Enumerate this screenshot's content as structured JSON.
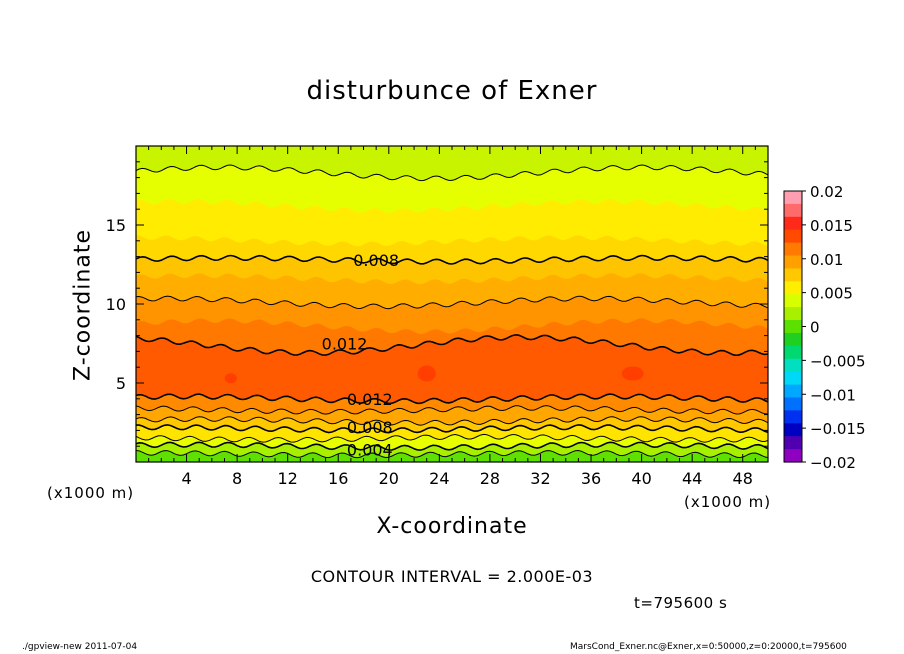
{
  "chart_data": {
    "type": "heatmap",
    "title": "disturbunce of Exner",
    "xlabel": "X-coordinate",
    "ylabel": "Z-coordinate",
    "x_unit_label": "(x1000 m)",
    "z_unit_label": "(x1000 m)",
    "xlim": [
      0,
      50
    ],
    "ylim": [
      0,
      20
    ],
    "x_ticks": [
      4,
      8,
      12,
      16,
      20,
      24,
      28,
      32,
      36,
      40,
      44,
      48
    ],
    "y_ticks": [
      5,
      10,
      15
    ],
    "contour_interval_text": "CONTOUR INTERVAL = 2.000E-03",
    "colorbar": {
      "ticks": [
        0.02,
        0.015,
        0.01,
        0.005,
        0,
        -0.005,
        -0.01,
        -0.015,
        -0.02
      ],
      "tick_labels": [
        "0.02",
        "0.015",
        "0.01",
        "0.005",
        "0",
        "−0.005",
        "−0.01",
        "−0.015",
        "−0.02"
      ],
      "colors": [
        "#ff9eb0",
        "#ff6a6a",
        "#ff2a1a",
        "#ff4a00",
        "#ff7a00",
        "#ffa000",
        "#ffc800",
        "#ffee00",
        "#d8ff00",
        "#a8f000",
        "#5be000",
        "#20d020",
        "#00d870",
        "#00e0c0",
        "#00d8f8",
        "#00a8ff",
        "#0070ff",
        "#0030f0",
        "#0000c0",
        "#5000b0",
        "#9000c0"
      ]
    },
    "contour_labels": [
      {
        "x": 19,
        "z": 12.8,
        "text": "0.008"
      },
      {
        "x": 16.5,
        "z": 7.5,
        "text": "0.012"
      },
      {
        "x": 18.5,
        "z": 4.0,
        "text": "0.012"
      },
      {
        "x": 18.5,
        "z": 2.2,
        "text": "0.008"
      },
      {
        "x": 18.5,
        "z": 0.8,
        "text": "0.004"
      }
    ],
    "contour_levels": [
      0.002,
      0.004,
      0.006,
      0.008,
      0.01,
      0.012
    ],
    "approx_field_bands": [
      {
        "z_from": 0.0,
        "z_to": 0.6,
        "value_range": "0.002-0.004"
      },
      {
        "z_from": 0.6,
        "z_to": 1.3,
        "value_range": "0.004-0.006"
      },
      {
        "z_from": 1.3,
        "z_to": 2.2,
        "value_range": "0.006-0.008"
      },
      {
        "z_from": 2.2,
        "z_to": 3.4,
        "value_range": "0.008-0.012"
      },
      {
        "z_from": 3.4,
        "z_to": 7.0,
        "value_range": ">0.012"
      },
      {
        "z_from": 7.0,
        "z_to": 10.0,
        "value_range": "0.010-0.012"
      },
      {
        "z_from": 10.0,
        "z_to": 12.8,
        "value_range": "0.008-0.010"
      },
      {
        "z_from": 12.8,
        "z_to": 18.0,
        "value_range": "0.006-0.008"
      },
      {
        "z_from": 18.0,
        "z_to": 20.0,
        "value_range": "0.004-0.006"
      }
    ],
    "grid": false,
    "legend": "colorbar-right"
  },
  "time_text": "t=795600 s",
  "footer_left": "./gpview-new   2011-07-04",
  "footer_right": "MarsCond_Exner.nc@Exner,x=0:50000,z=0:20000,t=795600"
}
